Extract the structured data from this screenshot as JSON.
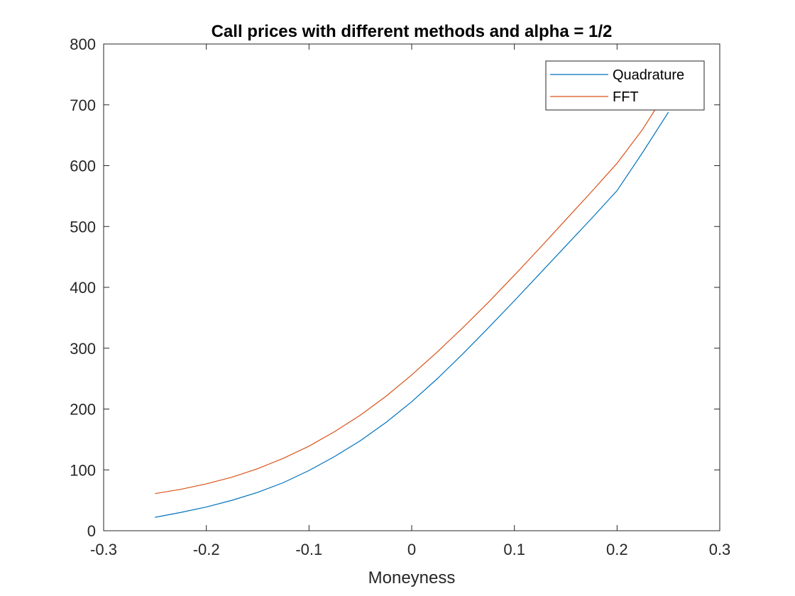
{
  "chart_data": {
    "type": "line",
    "title": "Call prices with different methods and alpha = 1/2",
    "xlabel": "Moneyness",
    "ylabel": "",
    "xlim": [
      -0.3,
      0.3
    ],
    "ylim": [
      0,
      800
    ],
    "xticks": [
      -0.3,
      -0.2,
      -0.1,
      0,
      0.1,
      0.2,
      0.3
    ],
    "xtick_labels": [
      "-0.3",
      "-0.2",
      "-0.1",
      "0",
      "0.1",
      "0.2",
      "0.3"
    ],
    "yticks": [
      0,
      100,
      200,
      300,
      400,
      500,
      600,
      700,
      800
    ],
    "ytick_labels": [
      "0",
      "100",
      "200",
      "300",
      "400",
      "500",
      "600",
      "700",
      "800"
    ],
    "grid": false,
    "box": true,
    "legend_position": "top-right",
    "series": [
      {
        "name": "Quadrature",
        "color": "#0072BD",
        "x": [
          -0.25,
          -0.225,
          -0.2,
          -0.175,
          -0.15,
          -0.125,
          -0.1,
          -0.075,
          -0.05,
          -0.025,
          0,
          0.025,
          0.05,
          0.075,
          0.1,
          0.125,
          0.15,
          0.175,
          0.2,
          0.225,
          0.25
        ],
        "y": [
          22,
          30,
          39,
          50,
          63,
          79,
          99,
          122,
          148,
          178,
          212,
          250,
          291,
          334,
          378,
          423,
          468,
          513,
          559,
          622,
          688
        ]
      },
      {
        "name": "FFT",
        "color": "#D95319",
        "x": [
          -0.25,
          -0.225,
          -0.2,
          -0.175,
          -0.15,
          -0.125,
          -0.1,
          -0.075,
          -0.05,
          -0.025,
          0,
          0.025,
          0.05,
          0.075,
          0.1,
          0.125,
          0.15,
          0.175,
          0.2,
          0.225,
          0.24
        ],
        "y": [
          61,
          68,
          77,
          88,
          102,
          119,
          139,
          163,
          190,
          221,
          256,
          294,
          334,
          376,
          420,
          465,
          511,
          557,
          604,
          660,
          700
        ]
      }
    ]
  }
}
